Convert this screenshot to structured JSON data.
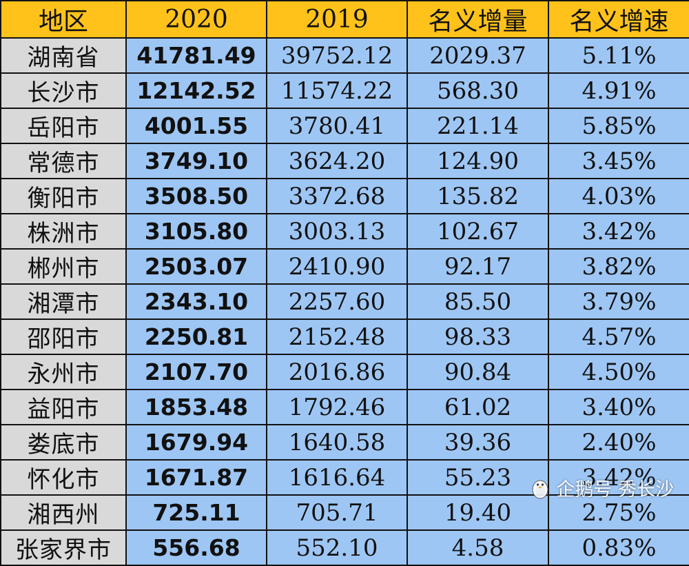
{
  "chart_data": {
    "type": "table",
    "columns": [
      "地区",
      "2020",
      "2019",
      "名义增量",
      "名义增速"
    ],
    "rows": [
      [
        "湖南省",
        "41781.49",
        "39752.12",
        "2029.37",
        "5.11%"
      ],
      [
        "长沙市",
        "12142.52",
        "11574.22",
        "568.30",
        "4.91%"
      ],
      [
        "岳阳市",
        "4001.55",
        "3780.41",
        "221.14",
        "5.85%"
      ],
      [
        "常德市",
        "3749.10",
        "3624.20",
        "124.90",
        "3.45%"
      ],
      [
        "衡阳市",
        "3508.50",
        "3372.68",
        "135.82",
        "4.03%"
      ],
      [
        "株洲市",
        "3105.80",
        "3003.13",
        "102.67",
        "3.42%"
      ],
      [
        "郴州市",
        "2503.07",
        "2410.90",
        "92.17",
        "3.82%"
      ],
      [
        "湘潭市",
        "2343.10",
        "2257.60",
        "85.50",
        "3.79%"
      ],
      [
        "邵阳市",
        "2250.81",
        "2152.48",
        "98.33",
        "4.57%"
      ],
      [
        "永州市",
        "2107.70",
        "2016.86",
        "90.84",
        "4.50%"
      ],
      [
        "益阳市",
        "1853.48",
        "1792.46",
        "61.02",
        "3.40%"
      ],
      [
        "娄底市",
        "1679.94",
        "1640.58",
        "39.36",
        "2.40%"
      ],
      [
        "怀化市",
        "1671.87",
        "1616.64",
        "55.23",
        "3.42%"
      ],
      [
        "湘西州",
        "725.11",
        "705.71",
        "19.40",
        "2.75%"
      ],
      [
        "张家界市",
        "556.68",
        "552.10",
        "4.58",
        "0.83%"
      ]
    ]
  },
  "watermark": {
    "text": "企鹅号 秀长沙",
    "icon": "penguin-icon"
  },
  "colors": {
    "header_bg": "#ffc21a",
    "region_bg": "#d9d9d9",
    "value_bg": "#9ec6f4",
    "grid": "#111111"
  }
}
